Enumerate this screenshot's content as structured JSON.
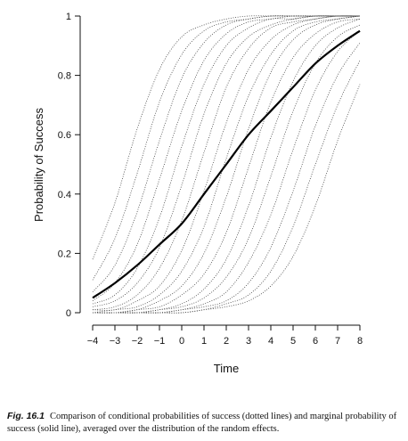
{
  "chart_data": {
    "type": "line",
    "title": "",
    "xlabel": "Time",
    "ylabel": "Probability of Success",
    "xlim": [
      -4,
      8
    ],
    "ylim": [
      0,
      1
    ],
    "x_ticks": [
      -4,
      -3,
      -2,
      -1,
      0,
      1,
      2,
      3,
      4,
      5,
      6,
      7,
      8
    ],
    "y_ticks": [
      0,
      0.2,
      0.4,
      0.6,
      0.8,
      1
    ],
    "x_tick_labels": [
      "−4",
      "−3",
      "−2",
      "−1",
      "0",
      "1",
      "2",
      "3",
      "4",
      "5",
      "6",
      "7",
      "8"
    ],
    "y_tick_labels": [
      "0",
      "0.2",
      "0.4",
      "0.6",
      "0.8",
      "1"
    ],
    "grid": false,
    "x": [
      -4,
      -3,
      -2,
      -1,
      0,
      1,
      2,
      3,
      4,
      5,
      6,
      7,
      8
    ],
    "series": [
      {
        "style": "dotted",
        "values": [
          0.18,
          0.37,
          0.62,
          0.82,
          0.93,
          0.97,
          0.99,
          1.0,
          1.0,
          1.0,
          1.0,
          1.0,
          1.0
        ]
      },
      {
        "style": "dotted",
        "values": [
          0.11,
          0.25,
          0.47,
          0.71,
          0.87,
          0.95,
          0.98,
          0.99,
          1.0,
          1.0,
          1.0,
          1.0,
          1.0
        ]
      },
      {
        "style": "dotted",
        "values": [
          0.07,
          0.16,
          0.34,
          0.58,
          0.79,
          0.91,
          0.97,
          0.99,
          1.0,
          1.0,
          1.0,
          1.0,
          1.0
        ]
      },
      {
        "style": "dotted",
        "values": [
          0.04,
          0.1,
          0.23,
          0.45,
          0.68,
          0.85,
          0.94,
          0.98,
          0.99,
          1.0,
          1.0,
          1.0,
          1.0
        ]
      },
      {
        "style": "dotted",
        "values": [
          0.03,
          0.06,
          0.15,
          0.32,
          0.56,
          0.77,
          0.9,
          0.96,
          0.99,
          0.99,
          1.0,
          1.0,
          1.0
        ]
      },
      {
        "style": "dotted",
        "values": [
          0.02,
          0.04,
          0.1,
          0.22,
          0.43,
          0.67,
          0.84,
          0.93,
          0.97,
          0.99,
          1.0,
          1.0,
          1.0
        ]
      },
      {
        "style": "dotted",
        "values": [
          0.01,
          0.02,
          0.06,
          0.15,
          0.31,
          0.54,
          0.76,
          0.89,
          0.96,
          0.98,
          0.99,
          1.0,
          1.0
        ]
      },
      {
        "style": "dotted",
        "values": [
          0.01,
          0.01,
          0.04,
          0.09,
          0.21,
          0.41,
          0.64,
          0.82,
          0.92,
          0.97,
          0.99,
          1.0,
          1.0
        ]
      },
      {
        "style": "dotted",
        "values": [
          0.0,
          0.01,
          0.02,
          0.06,
          0.14,
          0.29,
          0.52,
          0.73,
          0.87,
          0.95,
          0.98,
          0.99,
          1.0
        ]
      },
      {
        "style": "dotted",
        "values": [
          0.0,
          0.0,
          0.01,
          0.04,
          0.09,
          0.2,
          0.39,
          0.62,
          0.81,
          0.92,
          0.97,
          0.99,
          1.0
        ]
      },
      {
        "style": "dotted",
        "values": [
          0.0,
          0.0,
          0.01,
          0.02,
          0.06,
          0.13,
          0.27,
          0.49,
          0.71,
          0.86,
          0.94,
          0.98,
          0.99
        ]
      },
      {
        "style": "dotted",
        "values": [
          0.0,
          0.0,
          0.0,
          0.01,
          0.03,
          0.08,
          0.18,
          0.36,
          0.59,
          0.78,
          0.9,
          0.96,
          0.99
        ]
      },
      {
        "style": "dotted",
        "values": [
          0.0,
          0.0,
          0.0,
          0.01,
          0.02,
          0.05,
          0.12,
          0.25,
          0.46,
          0.68,
          0.84,
          0.93,
          0.97
        ]
      },
      {
        "style": "dotted",
        "values": [
          0.0,
          0.0,
          0.0,
          0.0,
          0.01,
          0.03,
          0.07,
          0.17,
          0.33,
          0.55,
          0.75,
          0.88,
          0.95
        ]
      },
      {
        "style": "dotted",
        "values": [
          0.0,
          0.0,
          0.0,
          0.0,
          0.01,
          0.02,
          0.04,
          0.1,
          0.22,
          0.41,
          0.63,
          0.8,
          0.91
        ]
      },
      {
        "style": "dotted",
        "values": [
          0.0,
          0.0,
          0.0,
          0.0,
          0.0,
          0.01,
          0.03,
          0.06,
          0.14,
          0.29,
          0.5,
          0.7,
          0.85
        ]
      },
      {
        "style": "dotted",
        "values": [
          0.0,
          0.0,
          0.0,
          0.0,
          0.0,
          0.01,
          0.02,
          0.04,
          0.09,
          0.19,
          0.36,
          0.58,
          0.77
        ]
      },
      {
        "style": "solid",
        "values": [
          0.05,
          0.1,
          0.16,
          0.23,
          0.3,
          0.4,
          0.5,
          0.6,
          0.68,
          0.76,
          0.84,
          0.9,
          0.95
        ]
      }
    ]
  },
  "caption": {
    "label": "Fig. 16.1",
    "text": "Comparison of conditional probabilities of success (dotted lines) and marginal probability of success (solid line), averaged over the distribution of the random effects."
  }
}
